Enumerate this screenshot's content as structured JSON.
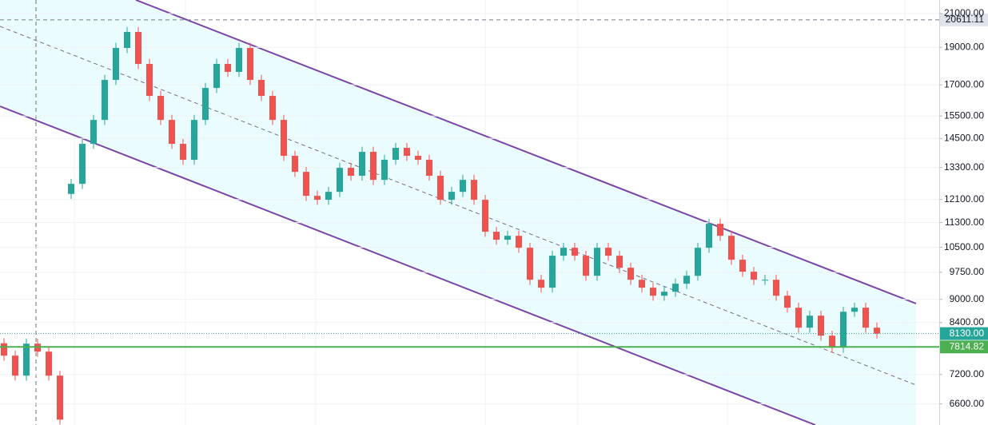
{
  "chart_data": {
    "type": "candlestick",
    "log_scale": true,
    "grid": true,
    "ylim": [
      6200,
      21860
    ],
    "yticks": [
      {
        "value": 21000,
        "label": "21000.00"
      },
      {
        "value": 19000,
        "label": "19000.00"
      },
      {
        "value": 17000,
        "label": "17000.00"
      },
      {
        "value": 15500,
        "label": "15500.00"
      },
      {
        "value": 14500,
        "label": "14500.00"
      },
      {
        "value": 13300,
        "label": "13300.00"
      },
      {
        "value": 12100,
        "label": "12100.00"
      },
      {
        "value": 11300,
        "label": "11300.00"
      },
      {
        "value": 10500,
        "label": "10500.00"
      },
      {
        "value": 9750,
        "label": "9750.00"
      },
      {
        "value": 9000,
        "label": "9000.00"
      },
      {
        "value": 8400,
        "label": "8400.00"
      },
      {
        "value": 7200,
        "label": "7200.00"
      },
      {
        "value": 6600,
        "label": "6600.00"
      }
    ],
    "up_color": "#26a69a",
    "down_color": "#ef5350",
    "categories": [
      null,
      null,
      null,
      null,
      null,
      null,
      null,
      null,
      null,
      null,
      null,
      null,
      null,
      null,
      null,
      null,
      null,
      null,
      null,
      null,
      null,
      null,
      null,
      null,
      null,
      null,
      null,
      null,
      null,
      null,
      null,
      null,
      null,
      null,
      null,
      null,
      null,
      null,
      null,
      null,
      null,
      null,
      null,
      null,
      null,
      null,
      null,
      null,
      null,
      null,
      null,
      null,
      null,
      null,
      null,
      null,
      null,
      null,
      null,
      null,
      null,
      null,
      null,
      null,
      null,
      null,
      null,
      null,
      null,
      null,
      null,
      null,
      null,
      null,
      null,
      null,
      null,
      null,
      null
    ],
    "open": [
      7900,
      7616,
      7177,
      7891,
      7706,
      7177,
      12300,
      12674,
      14270,
      15319,
      17248,
      18963,
      19884,
      18085,
      16450,
      15319,
      14270,
      13610,
      15319,
      16843,
      18085,
      17663,
      18963,
      17248,
      16450,
      15319,
      13772,
      13133,
      12233,
      12089,
      12377,
      13291,
      12981,
      13936,
      12825,
      13610,
      14102,
      13772,
      13610,
      12981,
      12089,
      12377,
      12825,
      12089,
      10996,
      10738,
      10865,
      10486,
      9537,
      9315,
      10241,
      10486,
      10241,
      9651,
      10486,
      10241,
      9883,
      9537,
      9315,
      9096,
      9205,
      9426,
      9651,
      10486,
      11258,
      10865,
      10121,
      9767,
      9537,
      9537,
      9096,
      8779,
      8274,
      8574,
      8080,
      7798,
      8674,
      8779,
      8274
    ],
    "high": [
      8020,
      7730,
      8010,
      8010,
      7820,
      7280,
      12860,
      14480,
      15550,
      17510,
      19250,
      20180,
      20180,
      18360,
      16700,
      15550,
      14480,
      15550,
      17100,
      18360,
      18360,
      19250,
      19250,
      17510,
      16700,
      15550,
      13980,
      13330,
      12420,
      12560,
      13490,
      13490,
      14150,
      14150,
      13810,
      14310,
      14310,
      13980,
      13810,
      13180,
      12560,
      13020,
      13020,
      12270,
      11160,
      11030,
      11030,
      10640,
      9680,
      10390,
      10640,
      10640,
      10390,
      10640,
      10640,
      10390,
      10030,
      9680,
      9450,
      9340,
      9570,
      9800,
      10640,
      11430,
      11430,
      11030,
      10270,
      9910,
      9680,
      9680,
      9230,
      8910,
      8700,
      8700,
      8200,
      8800,
      8910,
      8910,
      8400
    ],
    "low": [
      7500,
      7070,
      7070,
      7590,
      7070,
      6210,
      12120,
      12480,
      14060,
      15090,
      16990,
      18680,
      17810,
      16200,
      15090,
      14060,
      13410,
      13410,
      15090,
      16590,
      17400,
      17400,
      16990,
      16200,
      15090,
      13570,
      12940,
      12050,
      11910,
      11910,
      12190,
      12790,
      12790,
      12630,
      12630,
      13410,
      13570,
      13410,
      12790,
      11910,
      11910,
      12190,
      11910,
      10830,
      10580,
      10580,
      10330,
      9390,
      9180,
      9180,
      10090,
      10090,
      9510,
      9510,
      10090,
      9730,
      9390,
      9180,
      8960,
      8960,
      9070,
      9280,
      9510,
      10330,
      10700,
      9970,
      9620,
      9390,
      9390,
      8960,
      8650,
      8150,
      8150,
      7960,
      7680,
      7680,
      8540,
      8150,
      8010
    ],
    "close": [
      7616,
      7177,
      7891,
      7706,
      7177,
      6300,
      12674,
      14270,
      15319,
      17248,
      18963,
      19884,
      18085,
      16450,
      15319,
      14270,
      13610,
      15319,
      16843,
      18085,
      17663,
      18963,
      17248,
      16450,
      15319,
      13772,
      13133,
      12233,
      12089,
      12377,
      13291,
      12981,
      13936,
      12825,
      13610,
      14102,
      13772,
      13610,
      12981,
      12089,
      12377,
      12825,
      12089,
      10996,
      10738,
      10865,
      10486,
      9537,
      9315,
      10241,
      10486,
      10241,
      9651,
      10486,
      10241,
      9883,
      9537,
      9315,
      9096,
      9205,
      9426,
      9651,
      10486,
      11258,
      10865,
      10121,
      9767,
      9537,
      9537,
      9096,
      8779,
      8274,
      8574,
      8080,
      7798,
      8674,
      8779,
      8274,
      8130
    ],
    "price_lines": [
      {
        "value": 20611.11,
        "label": "20611.11",
        "color": "#787b86",
        "label_bg": "#e0e3eb",
        "label_color": "#131722",
        "style": "dashed"
      },
      {
        "value": 8130,
        "label": "8130.00",
        "color": "#26a69a",
        "label_bg": "#26a69a",
        "label_color": "#ffffff",
        "style": "dotted"
      },
      {
        "value": 7814.82,
        "label": "7814.82",
        "color": "#4caf50",
        "label_bg": "#4caf50",
        "label_color": "#ffffff",
        "style": "solid"
      }
    ]
  }
}
